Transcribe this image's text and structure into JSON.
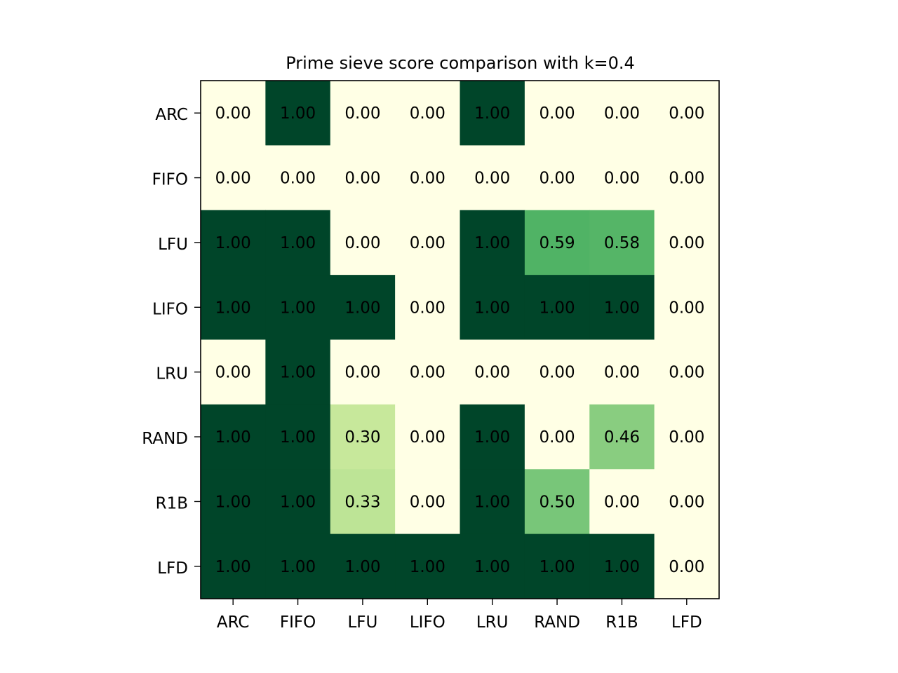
{
  "chart_data": {
    "type": "heatmap",
    "title": "Prime sieve score comparison with k=0.4",
    "xlabel": "",
    "ylabel": "",
    "x_categories": [
      "ARC",
      "FIFO",
      "LFU",
      "LIFO",
      "LRU",
      "RAND",
      "R1B",
      "LFD"
    ],
    "y_categories": [
      "ARC",
      "FIFO",
      "LFU",
      "LIFO",
      "LRU",
      "RAND",
      "R1B",
      "LFD"
    ],
    "values": [
      [
        0.0,
        1.0,
        0.0,
        0.0,
        1.0,
        0.0,
        0.0,
        0.0
      ],
      [
        0.0,
        0.0,
        0.0,
        0.0,
        0.0,
        0.0,
        0.0,
        0.0
      ],
      [
        1.0,
        1.0,
        0.0,
        0.0,
        1.0,
        0.59,
        0.58,
        0.0
      ],
      [
        1.0,
        1.0,
        1.0,
        0.0,
        1.0,
        1.0,
        1.0,
        0.0
      ],
      [
        0.0,
        1.0,
        0.0,
        0.0,
        0.0,
        0.0,
        0.0,
        0.0
      ],
      [
        1.0,
        1.0,
        0.3,
        0.0,
        1.0,
        0.0,
        0.46,
        0.0
      ],
      [
        1.0,
        1.0,
        0.33,
        0.0,
        1.0,
        0.5,
        0.0,
        0.0
      ],
      [
        1.0,
        1.0,
        1.0,
        1.0,
        1.0,
        1.0,
        1.0,
        0.0
      ]
    ],
    "value_range": [
      0,
      1
    ],
    "value_format": "2 decimals",
    "colormap": "YlGn",
    "grid": false,
    "colorbar": false
  }
}
